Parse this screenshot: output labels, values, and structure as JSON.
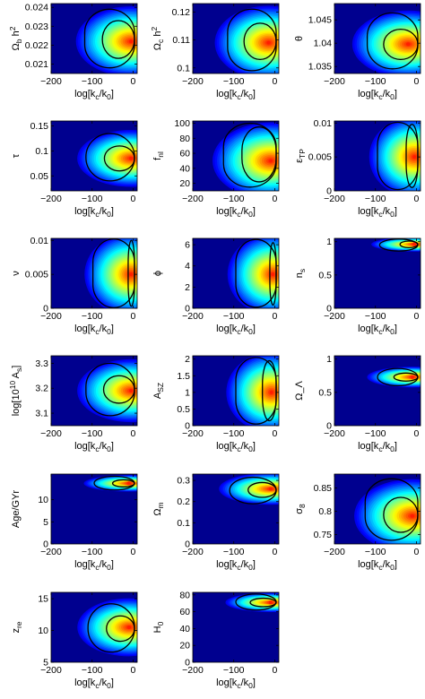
{
  "figure": {
    "x_label": "log[k_c/k_0]",
    "x_ticks": [
      -200,
      -100,
      0
    ],
    "x_tick_labels": [
      "−200",
      "−100",
      "0"
    ],
    "x_range": [
      -200,
      10
    ],
    "colormap": [
      "#00008f",
      "#0000ff",
      "#0080ff",
      "#00ffff",
      "#80ff80",
      "#ffff00",
      "#ff8000",
      "#ff0000"
    ]
  },
  "chart_data": [
    {
      "type": "heatmap",
      "ylabel": "Ω_b h^2",
      "ylim": [
        0.0205,
        0.0242
      ],
      "yticks": [
        0.021,
        0.022,
        0.023,
        0.024
      ],
      "ytick_labels": [
        "0.021",
        "0.022",
        "0.023",
        "0.024"
      ],
      "peak": {
        "x": -5,
        "y": 0.0222
      },
      "contours": [
        {
          "x_min": -75,
          "y_min": 0.0213,
          "y_max": 0.0233
        },
        {
          "x_min": -118,
          "y_min": 0.0208,
          "y_max": 0.0239
        }
      ]
    },
    {
      "type": "heatmap",
      "ylabel": "Ω_c h^2",
      "ylim": [
        0.098,
        0.123
      ],
      "yticks": [
        0.1,
        0.11,
        0.12
      ],
      "ytick_labels": [
        "0.1",
        "0.11",
        "0.12"
      ],
      "peak": {
        "x": -15,
        "y": 0.109
      },
      "contours": [
        {
          "x_min": -75,
          "y_min": 0.103,
          "y_max": 0.116
        },
        {
          "x_min": -115,
          "y_min": 0.099,
          "y_max": 0.121
        }
      ]
    },
    {
      "type": "heatmap",
      "ylabel": "θ",
      "ylim": [
        1.0335,
        1.0485
      ],
      "yticks": [
        1.035,
        1.04,
        1.045
      ],
      "ytick_labels": [
        "1.035",
        "1.04",
        "1.045"
      ],
      "peak": {
        "x": -20,
        "y": 1.0398
      },
      "contours": [
        {
          "x_min": -80,
          "y_min": 1.0365,
          "y_max": 1.043
        },
        {
          "x_min": -120,
          "y_min": 1.0345,
          "y_max": 1.0465
        }
      ]
    },
    {
      "type": "heatmap",
      "ylabel": "τ",
      "ylim": [
        0.02,
        0.16
      ],
      "yticks": [
        0.05,
        0.1,
        0.15
      ],
      "ytick_labels": [
        "0.05",
        "0.1",
        "0.15"
      ],
      "peak": {
        "x": -5,
        "y": 0.085
      },
      "contours": [
        {
          "x_min": -70,
          "y_min": 0.06,
          "y_max": 0.11
        },
        {
          "x_min": -115,
          "y_min": 0.04,
          "y_max": 0.135
        }
      ]
    },
    {
      "type": "heatmap",
      "ylabel": "f_nl",
      "ylim": [
        10,
        103
      ],
      "yticks": [
        20,
        40,
        60,
        80,
        100
      ],
      "ytick_labels": [
        "20",
        "40",
        "60",
        "80",
        "100"
      ],
      "peak": {
        "x": -10,
        "y": 50
      },
      "contours": [
        {
          "x_min": -80,
          "y_min": 22,
          "y_max": 95
        },
        {
          "x_min": -125,
          "y_min": 15,
          "y_max": 100
        }
      ]
    },
    {
      "type": "heatmap",
      "ylabel": "ε_TP",
      "ylim": [
        0,
        0.0103
      ],
      "yticks": [
        0,
        0.005,
        0.01
      ],
      "ytick_labels": [
        "0",
        "0.005",
        "0.01"
      ],
      "peak": {
        "x": -5,
        "y": 0.005
      },
      "contours": [
        {
          "x_min": -25,
          "y_min": 0.0005,
          "y_max": 0.0098
        },
        {
          "x_min": -95,
          "y_min": 0.0002,
          "y_max": 0.0101
        }
      ]
    },
    {
      "type": "heatmap",
      "ylabel": "ν",
      "ylim": [
        0,
        0.0103
      ],
      "yticks": [
        0,
        0.005,
        0.01
      ],
      "ytick_labels": [
        "0",
        "0.005",
        "0.01"
      ],
      "peak": {
        "x": -5,
        "y": 0.005
      },
      "contours": [
        {
          "x_min": -12,
          "y_min": 0.0003,
          "y_max": 0.01
        },
        {
          "x_min": -98,
          "y_min": 0.0001,
          "y_max": 0.0102
        }
      ]
    },
    {
      "type": "heatmap",
      "ylabel": "ϕ",
      "ylim": [
        0,
        6.6
      ],
      "yticks": [
        0,
        2,
        4,
        6
      ],
      "ytick_labels": [
        "0",
        "2",
        "4",
        "6"
      ],
      "peak": {
        "x": -5,
        "y": 3.2
      },
      "contours": [
        {
          "x_min": -12,
          "y_min": 0.3,
          "y_max": 6.2
        },
        {
          "x_min": -95,
          "y_min": 0.1,
          "y_max": 6.5
        }
      ]
    },
    {
      "type": "heatmap",
      "ylabel": "n_s",
      "ylim": [
        0,
        1.05
      ],
      "yticks": [
        0,
        0.5,
        1
      ],
      "ytick_labels": [
        "0",
        "0.5",
        "1"
      ],
      "peak": {
        "x": -5,
        "y": 0.96
      },
      "contours": [
        {
          "x_min": -40,
          "y_min": 0.91,
          "y_max": 1.01
        },
        {
          "x_min": -90,
          "y_min": 0.86,
          "y_max": 1.04
        }
      ]
    },
    {
      "type": "heatmap",
      "ylabel": "log[10^10 A_s]",
      "ylim": [
        3.05,
        3.33
      ],
      "yticks": [
        3.1,
        3.2,
        3.3
      ],
      "ytick_labels": [
        "3.1",
        "3.2",
        "3.3"
      ],
      "peak": {
        "x": -5,
        "y": 3.19
      },
      "contours": [
        {
          "x_min": -72,
          "y_min": 3.14,
          "y_max": 3.25
        },
        {
          "x_min": -115,
          "y_min": 3.09,
          "y_max": 3.3
        }
      ]
    },
    {
      "type": "heatmap",
      "ylabel": "A_SZ",
      "ylim": [
        0,
        2.1
      ],
      "yticks": [
        0,
        0.5,
        1,
        1.5,
        2
      ],
      "ytick_labels": [
        "0",
        "0.5",
        "1",
        "1.5",
        "2"
      ],
      "peak": {
        "x": -8,
        "y": 1.0
      },
      "contours": [
        {
          "x_min": -30,
          "y_min": 0.15,
          "y_max": 1.95
        },
        {
          "x_min": -95,
          "y_min": 0.05,
          "y_max": 2.05
        }
      ]
    },
    {
      "type": "heatmap",
      "ylabel": "Ω_Λ",
      "ylim": [
        0,
        1.05
      ],
      "yticks": [
        0,
        0.5,
        1
      ],
      "ytick_labels": [
        "0",
        "0.5",
        "1"
      ],
      "peak": {
        "x": -10,
        "y": 0.73
      },
      "contours": [
        {
          "x_min": -55,
          "y_min": 0.67,
          "y_max": 0.79
        },
        {
          "x_min": -95,
          "y_min": 0.6,
          "y_max": 0.86
        }
      ]
    },
    {
      "type": "heatmap",
      "ylabel": "Age/GYr",
      "ylim": [
        0,
        15.8
      ],
      "yticks": [
        0,
        5,
        10
      ],
      "ytick_labels": [
        "0",
        "5",
        "10"
      ],
      "peak": {
        "x": -10,
        "y": 13.7
      },
      "contours": [
        {
          "x_min": -50,
          "y_min": 12.9,
          "y_max": 14.5
        },
        {
          "x_min": -95,
          "y_min": 12.2,
          "y_max": 15.3
        }
      ]
    },
    {
      "type": "heatmap",
      "ylabel": "Ω_m",
      "ylim": [
        0,
        0.33
      ],
      "yticks": [
        0,
        0.1,
        0.2,
        0.3
      ],
      "ytick_labels": [
        "0",
        "0.1",
        "0.2",
        "0.3"
      ],
      "peak": {
        "x": -10,
        "y": 0.26
      },
      "contours": [
        {
          "x_min": -65,
          "y_min": 0.22,
          "y_max": 0.29
        },
        {
          "x_min": -110,
          "y_min": 0.19,
          "y_max": 0.315
        }
      ]
    },
    {
      "type": "heatmap",
      "ylabel": "σ_8",
      "ylim": [
        0.73,
        0.88
      ],
      "yticks": [
        0.75,
        0.8,
        0.85
      ],
      "ytick_labels": [
        "0.75",
        "0.8",
        "0.85"
      ],
      "peak": {
        "x": -10,
        "y": 0.79
      },
      "contours": [
        {
          "x_min": -80,
          "y_min": 0.755,
          "y_max": 0.83
        },
        {
          "x_min": -125,
          "y_min": 0.738,
          "y_max": 0.87
        }
      ]
    },
    {
      "type": "heatmap",
      "ylabel": "z_re",
      "ylim": [
        5,
        16
      ],
      "yticks": [
        5,
        10,
        15
      ],
      "ytick_labels": [
        "5",
        "10",
        "15"
      ],
      "peak": {
        "x": -10,
        "y": 10.5
      },
      "contours": [
        {
          "x_min": -65,
          "y_min": 8.3,
          "y_max": 12.3
        },
        {
          "x_min": -110,
          "y_min": 6.6,
          "y_max": 14.2
        }
      ]
    },
    {
      "type": "heatmap",
      "ylabel": "H_0",
      "ylim": [
        0,
        83
      ],
      "yticks": [
        0,
        20,
        40,
        60,
        80
      ],
      "ytick_labels": [
        "0",
        "20",
        "40",
        "60",
        "80"
      ],
      "peak": {
        "x": -10,
        "y": 71
      },
      "contours": [
        {
          "x_min": -60,
          "y_min": 66,
          "y_max": 76
        },
        {
          "x_min": -95,
          "y_min": 62,
          "y_max": 81
        }
      ]
    }
  ]
}
